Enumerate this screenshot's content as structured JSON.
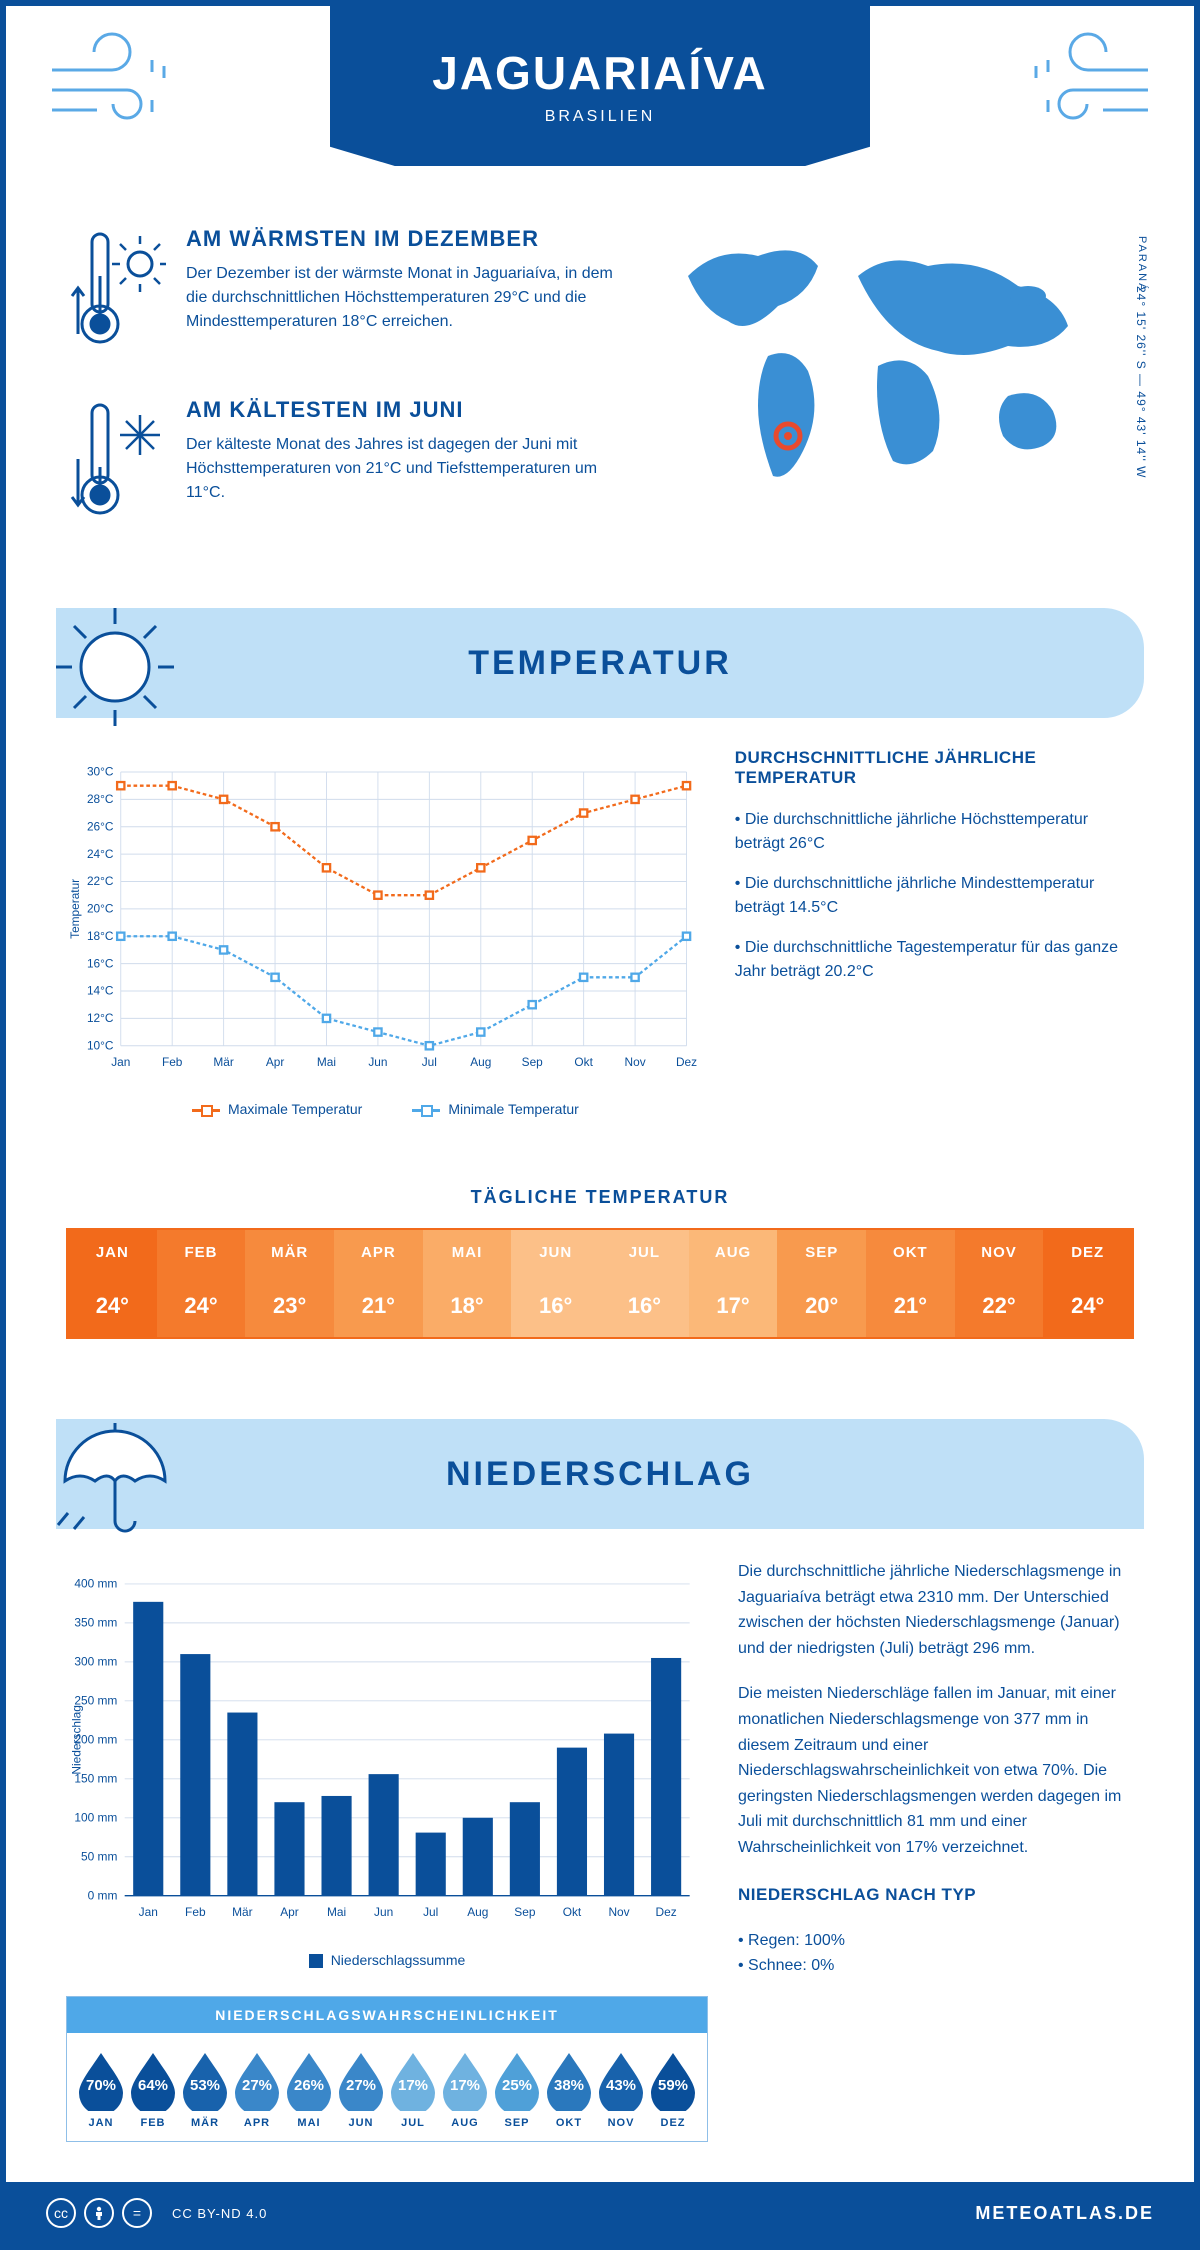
{
  "header": {
    "title": "JAGUARIAÍVA",
    "subtitle": "BRASILIEN",
    "region": "PARANÁ",
    "coords": "24° 15' 26'' S — 49° 43' 14'' W"
  },
  "intro": {
    "warm": {
      "head": "AM WÄRMSTEN IM DEZEMBER",
      "text": "Der Dezember ist der wärmste Monat in Jaguariaíva, in dem die durchschnittlichen Höchsttemperaturen 29°C und die Mindesttemperaturen 18°C erreichen."
    },
    "cold": {
      "head": "AM KÄLTESTEN IM JUNI",
      "text": "Der kälteste Monat des Jahres ist dagegen der Juni mit Höchsttemperaturen von 21°C und Tiefsttemperaturen um 11°C."
    }
  },
  "temp_banner": "TEMPERATUR",
  "temp_chart": {
    "months": [
      "Jan",
      "Feb",
      "Mär",
      "Apr",
      "Mai",
      "Jun",
      "Jul",
      "Aug",
      "Sep",
      "Okt",
      "Nov",
      "Dez"
    ],
    "max": [
      29,
      29,
      28,
      26,
      23,
      21,
      21,
      23,
      25,
      27,
      28,
      29
    ],
    "min": [
      18,
      18,
      17,
      15,
      12,
      11,
      10,
      11,
      13,
      15,
      15,
      18
    ],
    "ymin": 10,
    "ymax": 30,
    "ystep": 2,
    "ylabel": "Temperatur",
    "color_max": "#f26a1b",
    "color_min": "#4fa8e8",
    "grid_color": "#d0dcec",
    "legend_max": "Maximale Temperatur",
    "legend_min": "Minimale Temperatur"
  },
  "temp_notes": {
    "head": "DURCHSCHNITTLICHE JÄHRLICHE TEMPERATUR",
    "n1": "• Die durchschnittliche jährliche Höchsttemperatur beträgt 26°C",
    "n2": "• Die durchschnittliche jährliche Mindesttemperatur beträgt 14.5°C",
    "n3": "• Die durchschnittliche Tagestemperatur für das ganze Jahr beträgt 20.2°C"
  },
  "daily": {
    "title": "TÄGLICHE TEMPERATUR",
    "months": [
      "JAN",
      "FEB",
      "MÄR",
      "APR",
      "MAI",
      "JUN",
      "JUL",
      "AUG",
      "SEP",
      "OKT",
      "NOV",
      "DEZ"
    ],
    "values": [
      "24°",
      "24°",
      "23°",
      "21°",
      "18°",
      "16°",
      "16°",
      "17°",
      "20°",
      "21°",
      "22°",
      "24°"
    ],
    "colors": [
      "#f26a1b",
      "#f47a2c",
      "#f68a3d",
      "#f89a4e",
      "#faac67",
      "#fcc088",
      "#fcc088",
      "#fbb878",
      "#f89a4e",
      "#f68a3d",
      "#f47a2c",
      "#f26a1b"
    ]
  },
  "precip_banner": "NIEDERSCHLAG",
  "precip_chart": {
    "months": [
      "Jan",
      "Feb",
      "Mär",
      "Apr",
      "Mai",
      "Jun",
      "Jul",
      "Aug",
      "Sep",
      "Okt",
      "Nov",
      "Dez"
    ],
    "values": [
      377,
      310,
      235,
      120,
      128,
      156,
      81,
      100,
      120,
      190,
      208,
      305
    ],
    "ymax": 400,
    "ystep": 50,
    "ylabel": "Niederschlag",
    "bar_color": "#0a4f9a",
    "grid_color": "#d0dcec",
    "legend": "Niederschlagssumme"
  },
  "precip_text": {
    "p1": "Die durchschnittliche jährliche Niederschlagsmenge in Jaguariaíva beträgt etwa 2310 mm. Der Unterschied zwischen der höchsten Niederschlagsmenge (Januar) und der niedrigsten (Juli) beträgt 296 mm.",
    "p2": "Die meisten Niederschläge fallen im Januar, mit einer monatlichen Niederschlagsmenge von 377 mm in diesem Zeitraum und einer Niederschlagswahrscheinlichkeit von etwa 70%. Die geringsten Niederschlagsmengen werden dagegen im Juli mit durchschnittlich 81 mm und einer Wahrscheinlichkeit von 17% verzeichnet.",
    "type_head": "NIEDERSCHLAG NACH TYP",
    "rain": "• Regen: 100%",
    "snow": "• Schnee: 0%"
  },
  "prob": {
    "head": "NIEDERSCHLAGSWAHRSCHEINLICHKEIT",
    "months": [
      "JAN",
      "FEB",
      "MÄR",
      "APR",
      "MAI",
      "JUN",
      "JUL",
      "AUG",
      "SEP",
      "OKT",
      "NOV",
      "DEZ"
    ],
    "values": [
      "70%",
      "64%",
      "53%",
      "27%",
      "26%",
      "27%",
      "17%",
      "17%",
      "25%",
      "38%",
      "43%",
      "59%"
    ],
    "colors": [
      "#0a4f9a",
      "#0a4f9a",
      "#1862ac",
      "#3a87c9",
      "#3a87c9",
      "#3a87c9",
      "#6fb2e0",
      "#6fb2e0",
      "#4fa0d8",
      "#2a78bd",
      "#1862ac",
      "#0a4f9a"
    ]
  },
  "footer": {
    "license": "CC BY-ND 4.0",
    "brand": "METEOATLAS.DE"
  }
}
